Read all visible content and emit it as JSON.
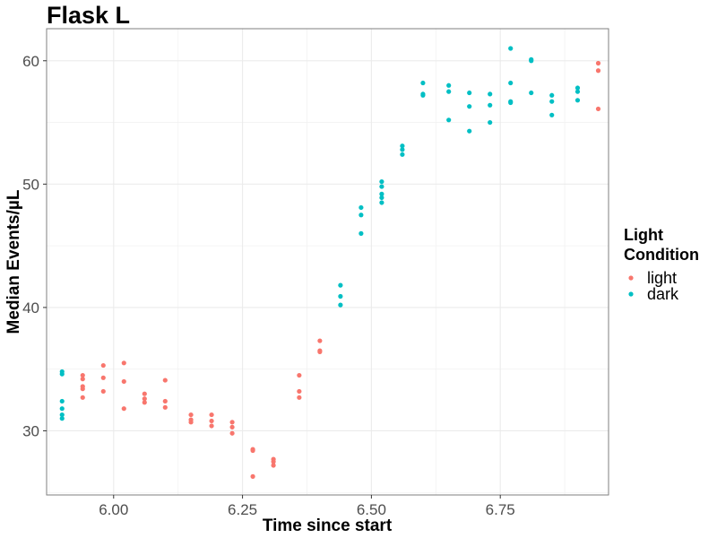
{
  "chart_data": {
    "type": "scatter",
    "title": "Flask L",
    "xlabel": "Time since start",
    "ylabel": "Median Events/µL",
    "xlim": [
      5.87,
      6.96
    ],
    "ylim": [
      24.8,
      62.6
    ],
    "x_ticks": [
      6.0,
      6.25,
      6.5,
      6.75
    ],
    "x_tick_labels": [
      "6.00",
      "6.25",
      "6.50",
      "6.75"
    ],
    "y_ticks": [
      30,
      40,
      50,
      60
    ],
    "y_tick_labels": [
      "30",
      "40",
      "50",
      "60"
    ],
    "grid": true,
    "legend": {
      "title": [
        "Light",
        "Condition"
      ],
      "placement": "right"
    },
    "colors": {
      "light": "#F8766D",
      "dark": "#00BFC4"
    },
    "series": [
      {
        "name": "light",
        "points": [
          [
            5.94,
            34.5
          ],
          [
            5.94,
            34.2
          ],
          [
            5.94,
            33.6
          ],
          [
            5.94,
            33.4
          ],
          [
            5.94,
            32.7
          ],
          [
            5.98,
            35.3
          ],
          [
            5.98,
            34.3
          ],
          [
            5.98,
            33.2
          ],
          [
            6.02,
            35.5
          ],
          [
            6.02,
            34.0
          ],
          [
            6.02,
            31.8
          ],
          [
            6.06,
            33.0
          ],
          [
            6.06,
            32.6
          ],
          [
            6.06,
            32.3
          ],
          [
            6.1,
            34.1
          ],
          [
            6.1,
            32.4
          ],
          [
            6.1,
            31.9
          ],
          [
            6.15,
            31.3
          ],
          [
            6.15,
            30.9
          ],
          [
            6.15,
            30.7
          ],
          [
            6.19,
            31.3
          ],
          [
            6.19,
            30.8
          ],
          [
            6.19,
            30.4
          ],
          [
            6.23,
            30.7
          ],
          [
            6.23,
            30.3
          ],
          [
            6.23,
            29.8
          ],
          [
            6.27,
            28.5
          ],
          [
            6.27,
            28.4
          ],
          [
            6.27,
            26.3
          ],
          [
            6.31,
            27.7
          ],
          [
            6.31,
            27.5
          ],
          [
            6.31,
            27.2
          ],
          [
            6.36,
            34.5
          ],
          [
            6.36,
            33.2
          ],
          [
            6.36,
            32.7
          ],
          [
            6.4,
            37.3
          ],
          [
            6.4,
            36.5
          ],
          [
            6.4,
            36.4
          ],
          [
            6.94,
            59.8
          ],
          [
            6.94,
            59.2
          ],
          [
            6.94,
            56.1
          ]
        ]
      },
      {
        "name": "dark",
        "points": [
          [
            5.9,
            34.8
          ],
          [
            5.9,
            34.6
          ],
          [
            5.9,
            32.4
          ],
          [
            5.9,
            31.8
          ],
          [
            5.9,
            31.3
          ],
          [
            5.9,
            31.0
          ],
          [
            6.44,
            41.8
          ],
          [
            6.44,
            40.9
          ],
          [
            6.44,
            40.2
          ],
          [
            6.48,
            48.1
          ],
          [
            6.48,
            47.5
          ],
          [
            6.48,
            46.0
          ],
          [
            6.52,
            50.2
          ],
          [
            6.52,
            49.8
          ],
          [
            6.52,
            49.2
          ],
          [
            6.52,
            48.9
          ],
          [
            6.52,
            48.5
          ],
          [
            6.56,
            53.1
          ],
          [
            6.56,
            52.8
          ],
          [
            6.56,
            52.4
          ],
          [
            6.6,
            58.2
          ],
          [
            6.6,
            57.3
          ],
          [
            6.6,
            57.2
          ],
          [
            6.65,
            58.0
          ],
          [
            6.65,
            57.5
          ],
          [
            6.65,
            55.2
          ],
          [
            6.69,
            57.4
          ],
          [
            6.69,
            56.3
          ],
          [
            6.69,
            54.3
          ],
          [
            6.73,
            57.3
          ],
          [
            6.73,
            56.4
          ],
          [
            6.73,
            55.0
          ],
          [
            6.77,
            61.0
          ],
          [
            6.77,
            58.2
          ],
          [
            6.77,
            56.7
          ],
          [
            6.77,
            56.6
          ],
          [
            6.81,
            60.1
          ],
          [
            6.81,
            60.0
          ],
          [
            6.81,
            57.4
          ],
          [
            6.85,
            57.2
          ],
          [
            6.85,
            56.7
          ],
          [
            6.85,
            55.6
          ],
          [
            6.9,
            57.8
          ],
          [
            6.9,
            57.5
          ],
          [
            6.9,
            56.8
          ]
        ]
      }
    ]
  }
}
